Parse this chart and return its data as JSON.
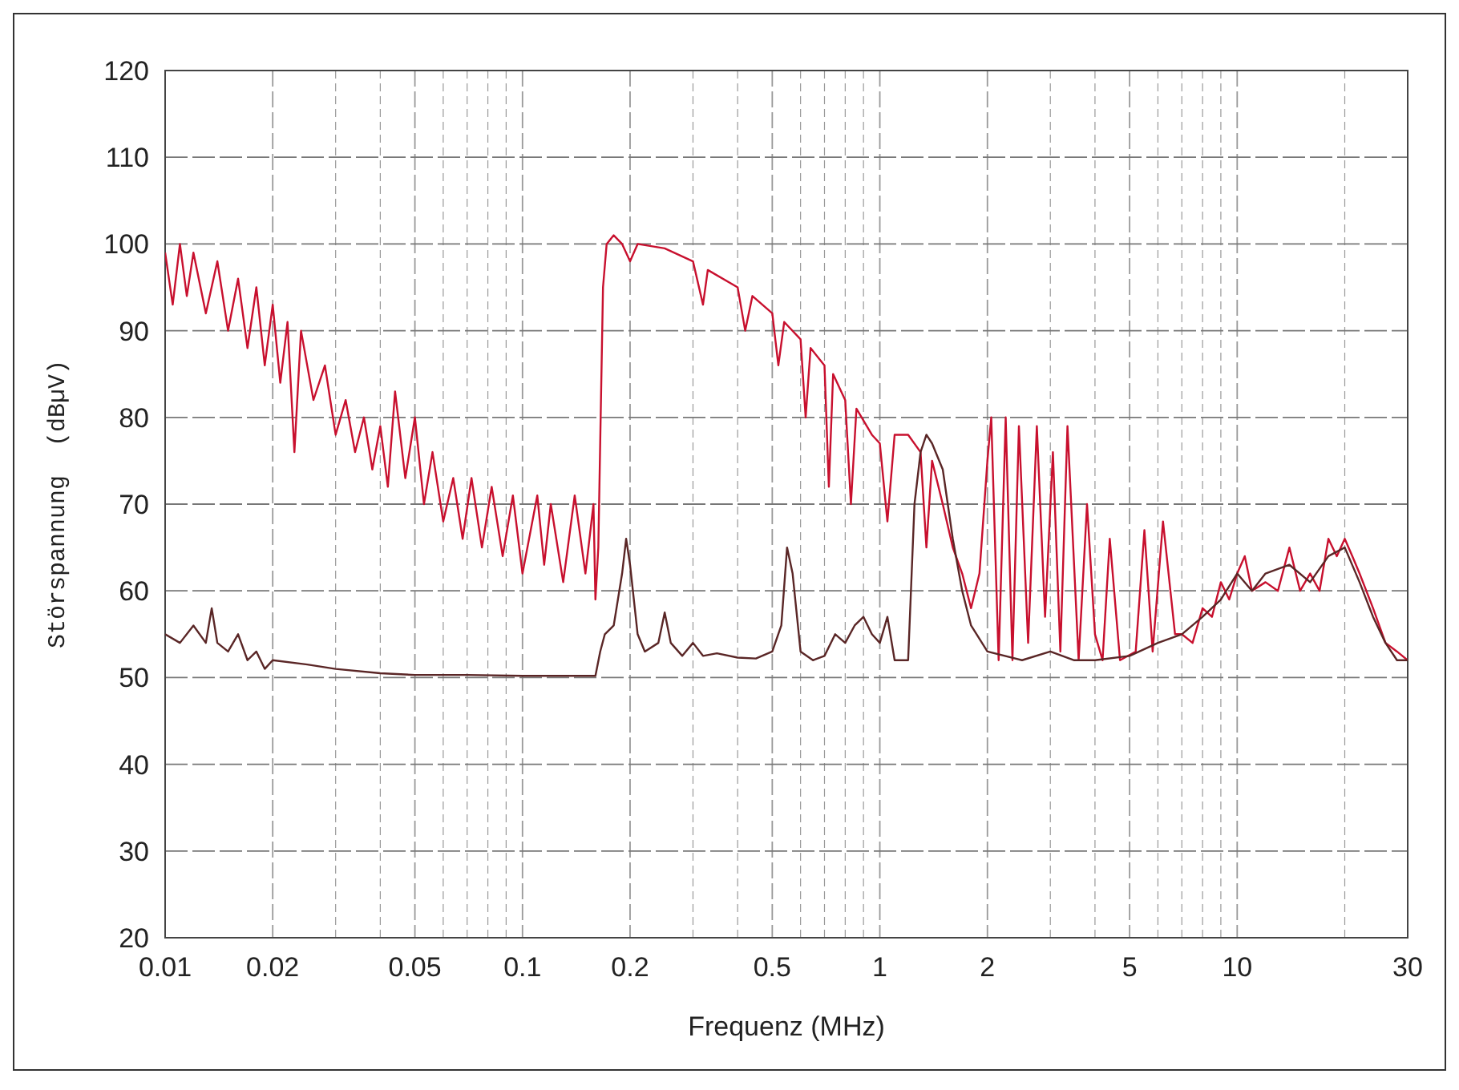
{
  "chart_data": {
    "type": "line",
    "xlabel": "Frequenz (MHz)",
    "ylabel": "Störspannung  (dBµV)",
    "log": "x",
    "grid": true,
    "xlim": [
      0.01,
      30
    ],
    "ylim": [
      20,
      120
    ],
    "xticks": [
      0.01,
      0.02,
      {
        "value": 0.03,
        "label": null
      },
      {
        "value": 0.04,
        "label": null
      },
      0.05,
      {
        "value": 0.06,
        "label": null
      },
      {
        "value": 0.07,
        "label": null
      },
      {
        "value": 0.08,
        "label": null
      },
      {
        "value": 0.09,
        "label": null
      },
      0.1,
      0.2,
      {
        "value": 0.3,
        "label": null
      },
      {
        "value": 0.4,
        "label": null
      },
      0.5,
      {
        "value": 0.6,
        "label": null
      },
      {
        "value": 0.7,
        "label": null
      },
      {
        "value": 0.8,
        "label": null
      },
      {
        "value": 0.9,
        "label": null
      },
      1,
      2,
      {
        "value": 3,
        "label": null
      },
      {
        "value": 4,
        "label": null
      },
      5,
      {
        "value": 6,
        "label": null
      },
      {
        "value": 7,
        "label": null
      },
      {
        "value": 8,
        "label": null
      },
      {
        "value": 9,
        "label": null
      },
      10,
      {
        "value": 20,
        "label": null
      },
      30
    ],
    "yticks": [
      20,
      30,
      40,
      50,
      60,
      70,
      80,
      90,
      100,
      110,
      120
    ],
    "series": [
      {
        "color": "#c8102e",
        "x": [
          0.01,
          0.0105,
          0.011,
          0.0115,
          0.012,
          0.013,
          0.014,
          0.015,
          0.016,
          0.017,
          0.018,
          0.019,
          0.02,
          0.021,
          0.022,
          0.023,
          0.024,
          0.026,
          0.028,
          0.03,
          0.032,
          0.034,
          0.036,
          0.038,
          0.04,
          0.042,
          0.044,
          0.047,
          0.05,
          0.053,
          0.056,
          0.06,
          0.064,
          0.068,
          0.072,
          0.077,
          0.082,
          0.088,
          0.094,
          0.1,
          0.11,
          0.115,
          0.12,
          0.13,
          0.14,
          0.15,
          0.158,
          0.16,
          0.163,
          0.168,
          0.172,
          0.18,
          0.19,
          0.2,
          0.21,
          0.25,
          0.3,
          0.32,
          0.33,
          0.4,
          0.42,
          0.44,
          0.5,
          0.52,
          0.54,
          0.6,
          0.62,
          0.64,
          0.7,
          0.72,
          0.74,
          0.8,
          0.83,
          0.86,
          0.95,
          1,
          1.05,
          1.1,
          1.2,
          1.3,
          1.35,
          1.4,
          1.5,
          1.6,
          1.7,
          1.8,
          1.9,
          2,
          2.05,
          2.15,
          2.25,
          2.35,
          2.45,
          2.6,
          2.75,
          2.9,
          3.05,
          3.2,
          3.35,
          3.6,
          3.8,
          4,
          4.2,
          4.4,
          4.7,
          5.2,
          5.5,
          5.8,
          6.2,
          6.7,
          7,
          7.5,
          8,
          8.5,
          9,
          9.5,
          10,
          10.5,
          11,
          12,
          13,
          14,
          15,
          16,
          17,
          18,
          19,
          20,
          21,
          22,
          24,
          26,
          28,
          30
        ],
        "values": [
          99,
          93,
          100,
          94,
          99,
          92,
          98,
          90,
          96,
          88,
          95,
          86,
          93,
          84,
          91,
          76,
          90,
          82,
          86,
          78,
          82,
          76,
          80,
          74,
          79,
          72,
          83,
          73,
          80,
          70,
          76,
          68,
          73,
          66,
          73,
          65,
          72,
          64,
          71,
          62,
          71,
          63,
          70,
          61,
          71,
          62,
          70,
          59,
          65,
          95,
          100,
          101,
          100,
          98,
          100,
          99.5,
          98,
          93,
          97,
          95,
          90,
          94,
          92,
          86,
          91,
          89,
          80,
          88,
          86,
          72,
          85,
          82,
          70,
          81,
          78,
          77,
          68,
          78,
          78,
          76,
          65,
          75,
          70,
          65,
          62,
          58,
          62,
          75,
          80,
          52,
          80,
          52,
          79,
          54,
          79,
          57,
          76,
          53,
          79,
          52,
          70,
          55,
          52,
          66,
          52,
          53,
          67,
          53,
          68,
          55,
          55,
          54,
          58,
          57,
          61,
          59,
          62,
          64,
          60,
          61,
          60,
          65,
          60,
          62,
          60,
          66,
          64,
          66,
          64,
          62,
          58,
          54,
          53,
          52
        ]
      },
      {
        "color": "#5a2626",
        "x": [
          0.01,
          0.011,
          0.012,
          0.013,
          0.0135,
          0.014,
          0.015,
          0.016,
          0.017,
          0.018,
          0.019,
          0.02,
          0.025,
          0.03,
          0.04,
          0.05,
          0.07,
          0.1,
          0.14,
          0.16,
          0.165,
          0.17,
          0.18,
          0.19,
          0.195,
          0.2,
          0.21,
          0.22,
          0.24,
          0.25,
          0.26,
          0.28,
          0.3,
          0.32,
          0.35,
          0.4,
          0.45,
          0.5,
          0.53,
          0.55,
          0.57,
          0.6,
          0.65,
          0.7,
          0.75,
          0.8,
          0.85,
          0.9,
          0.95,
          1,
          1.05,
          1.1,
          1.2,
          1.25,
          1.3,
          1.35,
          1.4,
          1.5,
          1.6,
          1.7,
          1.8,
          2,
          2.5,
          3,
          3.5,
          4,
          5,
          6,
          7,
          8,
          9,
          10,
          11,
          12,
          14,
          16,
          18,
          20,
          22,
          24,
          26,
          28,
          30
        ],
        "values": [
          55,
          54,
          56,
          54,
          58,
          54,
          53,
          55,
          52,
          53,
          51,
          52,
          51.5,
          51,
          50.5,
          50.3,
          50.3,
          50.2,
          50.2,
          50.2,
          53,
          55,
          56,
          62,
          66,
          63,
          55,
          53,
          54,
          57.5,
          54,
          52.5,
          54,
          52.5,
          52.8,
          52.3,
          52.2,
          53,
          56,
          65,
          62,
          53,
          52,
          52.5,
          55,
          54,
          56,
          57,
          55,
          54,
          57,
          52,
          52,
          70,
          76,
          78,
          77,
          74,
          66,
          60,
          56,
          53,
          52,
          53,
          52,
          52,
          52.5,
          54,
          55,
          57,
          59,
          62,
          60,
          62,
          63,
          61,
          64,
          65,
          61,
          57,
          54,
          52,
          52
        ]
      }
    ]
  }
}
